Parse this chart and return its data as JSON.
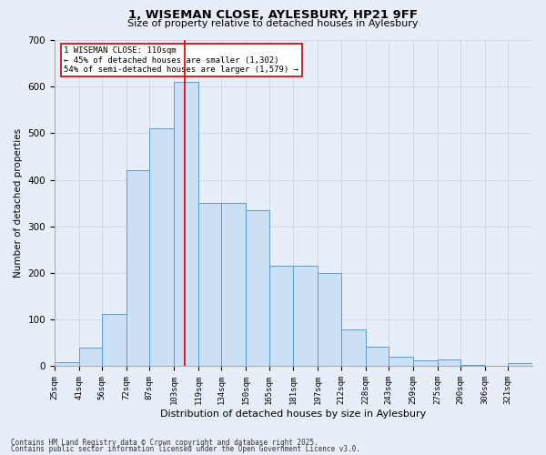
{
  "title_line1": "1, WISEMAN CLOSE, AYLESBURY, HP21 9FF",
  "title_line2": "Size of property relative to detached houses in Aylesbury",
  "xlabel": "Distribution of detached houses by size in Aylesbury",
  "ylabel": "Number of detached properties",
  "bins": [
    25,
    41,
    56,
    72,
    87,
    103,
    119,
    134,
    150,
    165,
    181,
    197,
    212,
    228,
    243,
    259,
    275,
    290,
    306,
    321,
    337
  ],
  "values": [
    8,
    40,
    113,
    420,
    510,
    610,
    350,
    350,
    335,
    215,
    215,
    200,
    80,
    42,
    20,
    13,
    15,
    3,
    1,
    6
  ],
  "bar_face_color": "#cce0f5",
  "bar_edge_color": "#5b9bd5",
  "vline_x": 110,
  "vline_color": "#cc0000",
  "annotation_title": "1 WISEMAN CLOSE: 110sqm",
  "annotation_line1": "← 45% of detached houses are smaller (1,302)",
  "annotation_line2": "54% of semi-detached houses are larger (1,579) →",
  "annotation_box_edge_color": "#cc0000",
  "annotation_box_face_color": "#ffffff",
  "ylim": [
    0,
    700
  ],
  "yticks": [
    0,
    100,
    200,
    300,
    400,
    500,
    600,
    700
  ],
  "grid_color": "#d0d8e8",
  "background_color": "#e8eef8",
  "footnote_line1": "Contains HM Land Registry data © Crown copyright and database right 2025.",
  "footnote_line2": "Contains public sector information licensed under the Open Government Licence v3.0."
}
